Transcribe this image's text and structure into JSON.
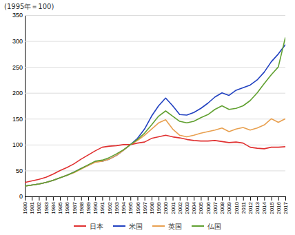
{
  "chart_data": {
    "type": "line",
    "y_label": "(1995年＝100)",
    "x": [
      1980,
      1981,
      1982,
      1983,
      1984,
      1985,
      1986,
      1987,
      1988,
      1989,
      1990,
      1991,
      1992,
      1993,
      1994,
      1995,
      1996,
      1997,
      1998,
      1999,
      2000,
      2001,
      2002,
      2003,
      2004,
      2005,
      2006,
      2007,
      2008,
      2009,
      2010,
      2011,
      2012,
      2013,
      2014,
      2015,
      2016,
      2017
    ],
    "series": [
      {
        "name": "日本",
        "color": "#e03030",
        "values": [
          27,
          30,
          33,
          37,
          43,
          50,
          56,
          63,
          72,
          80,
          88,
          95,
          97,
          98,
          100,
          100,
          103,
          105,
          112,
          115,
          118,
          115,
          113,
          110,
          108,
          107,
          107,
          108,
          106,
          104,
          105,
          103,
          95,
          93,
          92,
          95,
          95,
          96
        ]
      },
      {
        "name": "米国",
        "color": "#2040c0",
        "values": [
          20,
          22,
          24,
          27,
          31,
          36,
          41,
          47,
          54,
          60,
          67,
          68,
          72,
          79,
          89,
          100,
          112,
          130,
          155,
          175,
          190,
          175,
          158,
          157,
          162,
          170,
          180,
          192,
          200,
          195,
          205,
          210,
          215,
          225,
          240,
          260,
          275,
          293
        ]
      },
      {
        "name": "英国",
        "color": "#e8a050",
        "values": [
          20,
          22,
          24,
          27,
          31,
          36,
          41,
          46,
          53,
          60,
          66,
          68,
          72,
          79,
          89,
          100,
          108,
          118,
          130,
          142,
          148,
          130,
          118,
          115,
          118,
          122,
          125,
          128,
          132,
          125,
          130,
          133,
          128,
          132,
          138,
          150,
          143,
          150
        ]
      },
      {
        "name": "仏国",
        "color": "#60a030",
        "values": [
          20,
          22,
          24,
          27,
          31,
          36,
          41,
          47,
          54,
          61,
          68,
          70,
          75,
          82,
          90,
          100,
          110,
          122,
          138,
          155,
          165,
          155,
          145,
          142,
          145,
          152,
          158,
          168,
          175,
          168,
          170,
          175,
          185,
          200,
          218,
          235,
          250,
          307
        ]
      }
    ],
    "xlim": [
      1980,
      2017
    ],
    "xticks": [
      1980,
      1981,
      1982,
      1983,
      1984,
      1985,
      1986,
      1987,
      1988,
      1989,
      1990,
      1991,
      1992,
      1993,
      1994,
      1995,
      1996,
      1997,
      1998,
      1999,
      2000,
      2001,
      2002,
      2003,
      2004,
      2005,
      2006,
      2007,
      2008,
      2009,
      2010,
      2011,
      2012,
      2013,
      2014,
      2015,
      2016,
      2017
    ],
    "ylim": [
      0,
      350
    ],
    "yticks": [
      0,
      50,
      100,
      150,
      200,
      250,
      300,
      350
    ],
    "grid": true,
    "legend": "bottom"
  }
}
